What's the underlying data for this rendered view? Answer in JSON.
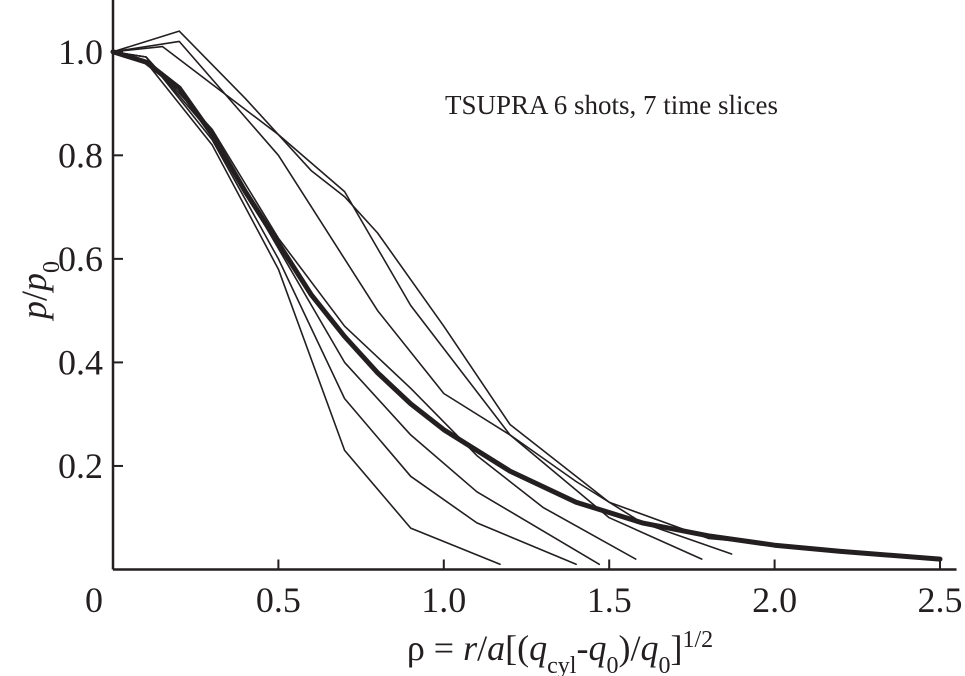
{
  "chart_data": {
    "type": "line",
    "annotation": "TSUPRA 6 shots, 7 time slices",
    "x_label": [
      {
        "text": "ρ = ",
        "style": "normal"
      },
      {
        "text": "r",
        "style": "italic"
      },
      {
        "text": "/",
        "style": "normal"
      },
      {
        "text": "a",
        "style": "italic"
      },
      {
        "text": "[(",
        "style": "normal"
      },
      {
        "text": "q",
        "style": "italic"
      },
      {
        "text": "cyl",
        "style": "sub"
      },
      {
        "text": "-",
        "style": "normal"
      },
      {
        "text": "q",
        "style": "italic"
      },
      {
        "text": "0",
        "style": "sub"
      },
      {
        "text": ")/",
        "style": "normal"
      },
      {
        "text": "q",
        "style": "italic"
      },
      {
        "text": "0",
        "style": "sub"
      },
      {
        "text": "]",
        "style": "normal"
      },
      {
        "text": "1/2",
        "style": "sup"
      }
    ],
    "y_label": [
      {
        "text": "p",
        "style": "italic"
      },
      {
        "text": "/",
        "style": "normal"
      },
      {
        "text": "p",
        "style": "italic"
      },
      {
        "text": "0",
        "style": "sub"
      }
    ],
    "xlim": [
      0,
      2.55
    ],
    "ylim": [
      0,
      1.1
    ],
    "xticks": [
      0,
      0.5,
      {
        "value": 1,
        "label": "1.0"
      },
      1.5,
      {
        "value": 2,
        "label": "2.0"
      },
      2.5
    ],
    "yticks": [
      {
        "value": 0.2,
        "label": "0.2"
      },
      {
        "value": 0.4,
        "label": "0.4"
      },
      {
        "value": 0.6,
        "label": "0.6"
      },
      {
        "value": 0.8,
        "label": "0.8"
      },
      {
        "value": 1,
        "label": "1.0"
      }
    ],
    "series": [
      {
        "color": "#231f20",
        "width": 1.6,
        "x": [
          0,
          0.2,
          0.4,
          0.6,
          0.7,
          0.8,
          1.0,
          1.2,
          1.5,
          1.8,
          2.5
        ],
        "values": [
          1.0,
          1.04,
          0.91,
          0.77,
          0.72,
          0.65,
          0.47,
          0.28,
          0.13,
          0.06,
          0.02
        ]
      },
      {
        "color": "#231f20",
        "width": 1.6,
        "x": [
          0,
          0.2,
          0.5,
          0.6,
          0.8,
          1.0,
          1.2,
          1.4,
          1.6,
          1.87
        ],
        "values": [
          1.0,
          1.02,
          0.8,
          0.7,
          0.5,
          0.34,
          0.26,
          0.17,
          0.09,
          0.03
        ]
      },
      {
        "color": "#231f20",
        "width": 1.6,
        "x": [
          0,
          0.15,
          0.5,
          0.7,
          0.9,
          1.2,
          1.5,
          1.78
        ],
        "values": [
          1.0,
          1.01,
          0.84,
          0.73,
          0.51,
          0.26,
          0.1,
          0.02
        ]
      },
      {
        "color": "#231f20",
        "width": 1.6,
        "x": [
          0,
          0.1,
          0.3,
          0.5,
          0.7,
          0.9,
          1.1,
          1.3,
          1.58
        ],
        "values": [
          1.0,
          0.99,
          0.85,
          0.64,
          0.47,
          0.35,
          0.22,
          0.12,
          0.02
        ]
      },
      {
        "color": "#231f20",
        "width": 1.6,
        "x": [
          0,
          0.1,
          0.3,
          0.5,
          0.7,
          0.9,
          1.1,
          1.47
        ],
        "values": [
          1.0,
          0.99,
          0.84,
          0.62,
          0.4,
          0.26,
          0.15,
          0.01
        ]
      },
      {
        "color": "#231f20",
        "width": 1.6,
        "x": [
          0,
          0.1,
          0.3,
          0.5,
          0.7,
          0.9,
          1.1,
          1.4
        ],
        "values": [
          1.0,
          0.99,
          0.83,
          0.6,
          0.33,
          0.18,
          0.09,
          0.01
        ]
      },
      {
        "color": "#231f20",
        "width": 1.6,
        "x": [
          0,
          0.1,
          0.3,
          0.5,
          0.7,
          0.9,
          1.17
        ],
        "values": [
          1.0,
          0.98,
          0.82,
          0.58,
          0.23,
          0.08,
          0.01
        ]
      },
      {
        "color": "#231f20",
        "width": 5,
        "x": [
          0,
          0.1,
          0.2,
          0.3,
          0.4,
          0.5,
          0.6,
          0.7,
          0.8,
          0.9,
          1.0,
          1.2,
          1.4,
          1.6,
          1.8,
          2.0,
          2.2,
          2.5
        ],
        "values": [
          1.0,
          0.98,
          0.93,
          0.84,
          0.73,
          0.63,
          0.53,
          0.45,
          0.38,
          0.32,
          0.27,
          0.19,
          0.13,
          0.09,
          0.065,
          0.047,
          0.035,
          0.02
        ]
      }
    ]
  }
}
